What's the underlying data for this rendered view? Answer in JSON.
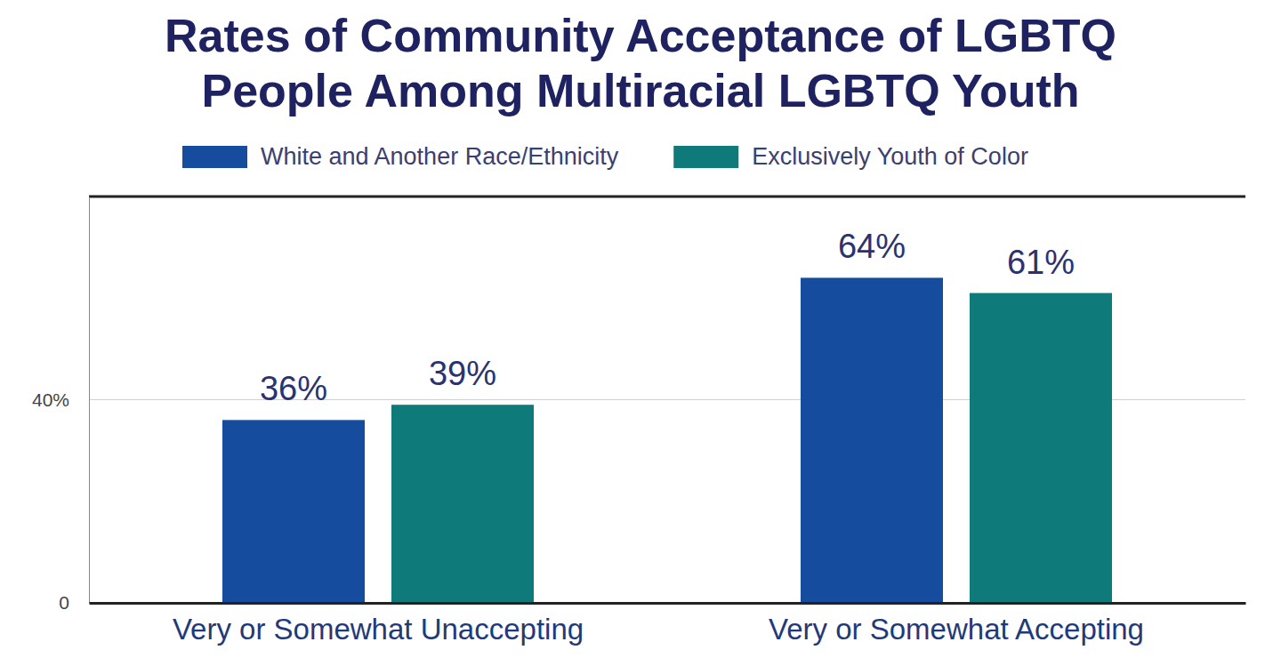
{
  "chart_data": {
    "type": "bar",
    "title": "Rates of Community Acceptance of LGBTQ People Among Multiracial LGBTQ Youth",
    "categories": [
      "Very or Somewhat Unaccepting",
      "Very or Somewhat Accepting"
    ],
    "series": [
      {
        "name": "White and Another Race/Ethnicity",
        "color": "#164c9e",
        "values": [
          36,
          64
        ],
        "value_labels": [
          "36%",
          "64%"
        ]
      },
      {
        "name": "Exclusively Youth of Color",
        "color": "#0f7a7a",
        "values": [
          39,
          61
        ],
        "value_labels": [
          "39%",
          "61%"
        ]
      }
    ],
    "ylim": [
      0,
      80
    ],
    "yticks": [
      {
        "value": 0,
        "label": "0"
      },
      {
        "value": 40,
        "label": "40%"
      }
    ],
    "grid": true,
    "legend": "top",
    "data_labels": true
  }
}
